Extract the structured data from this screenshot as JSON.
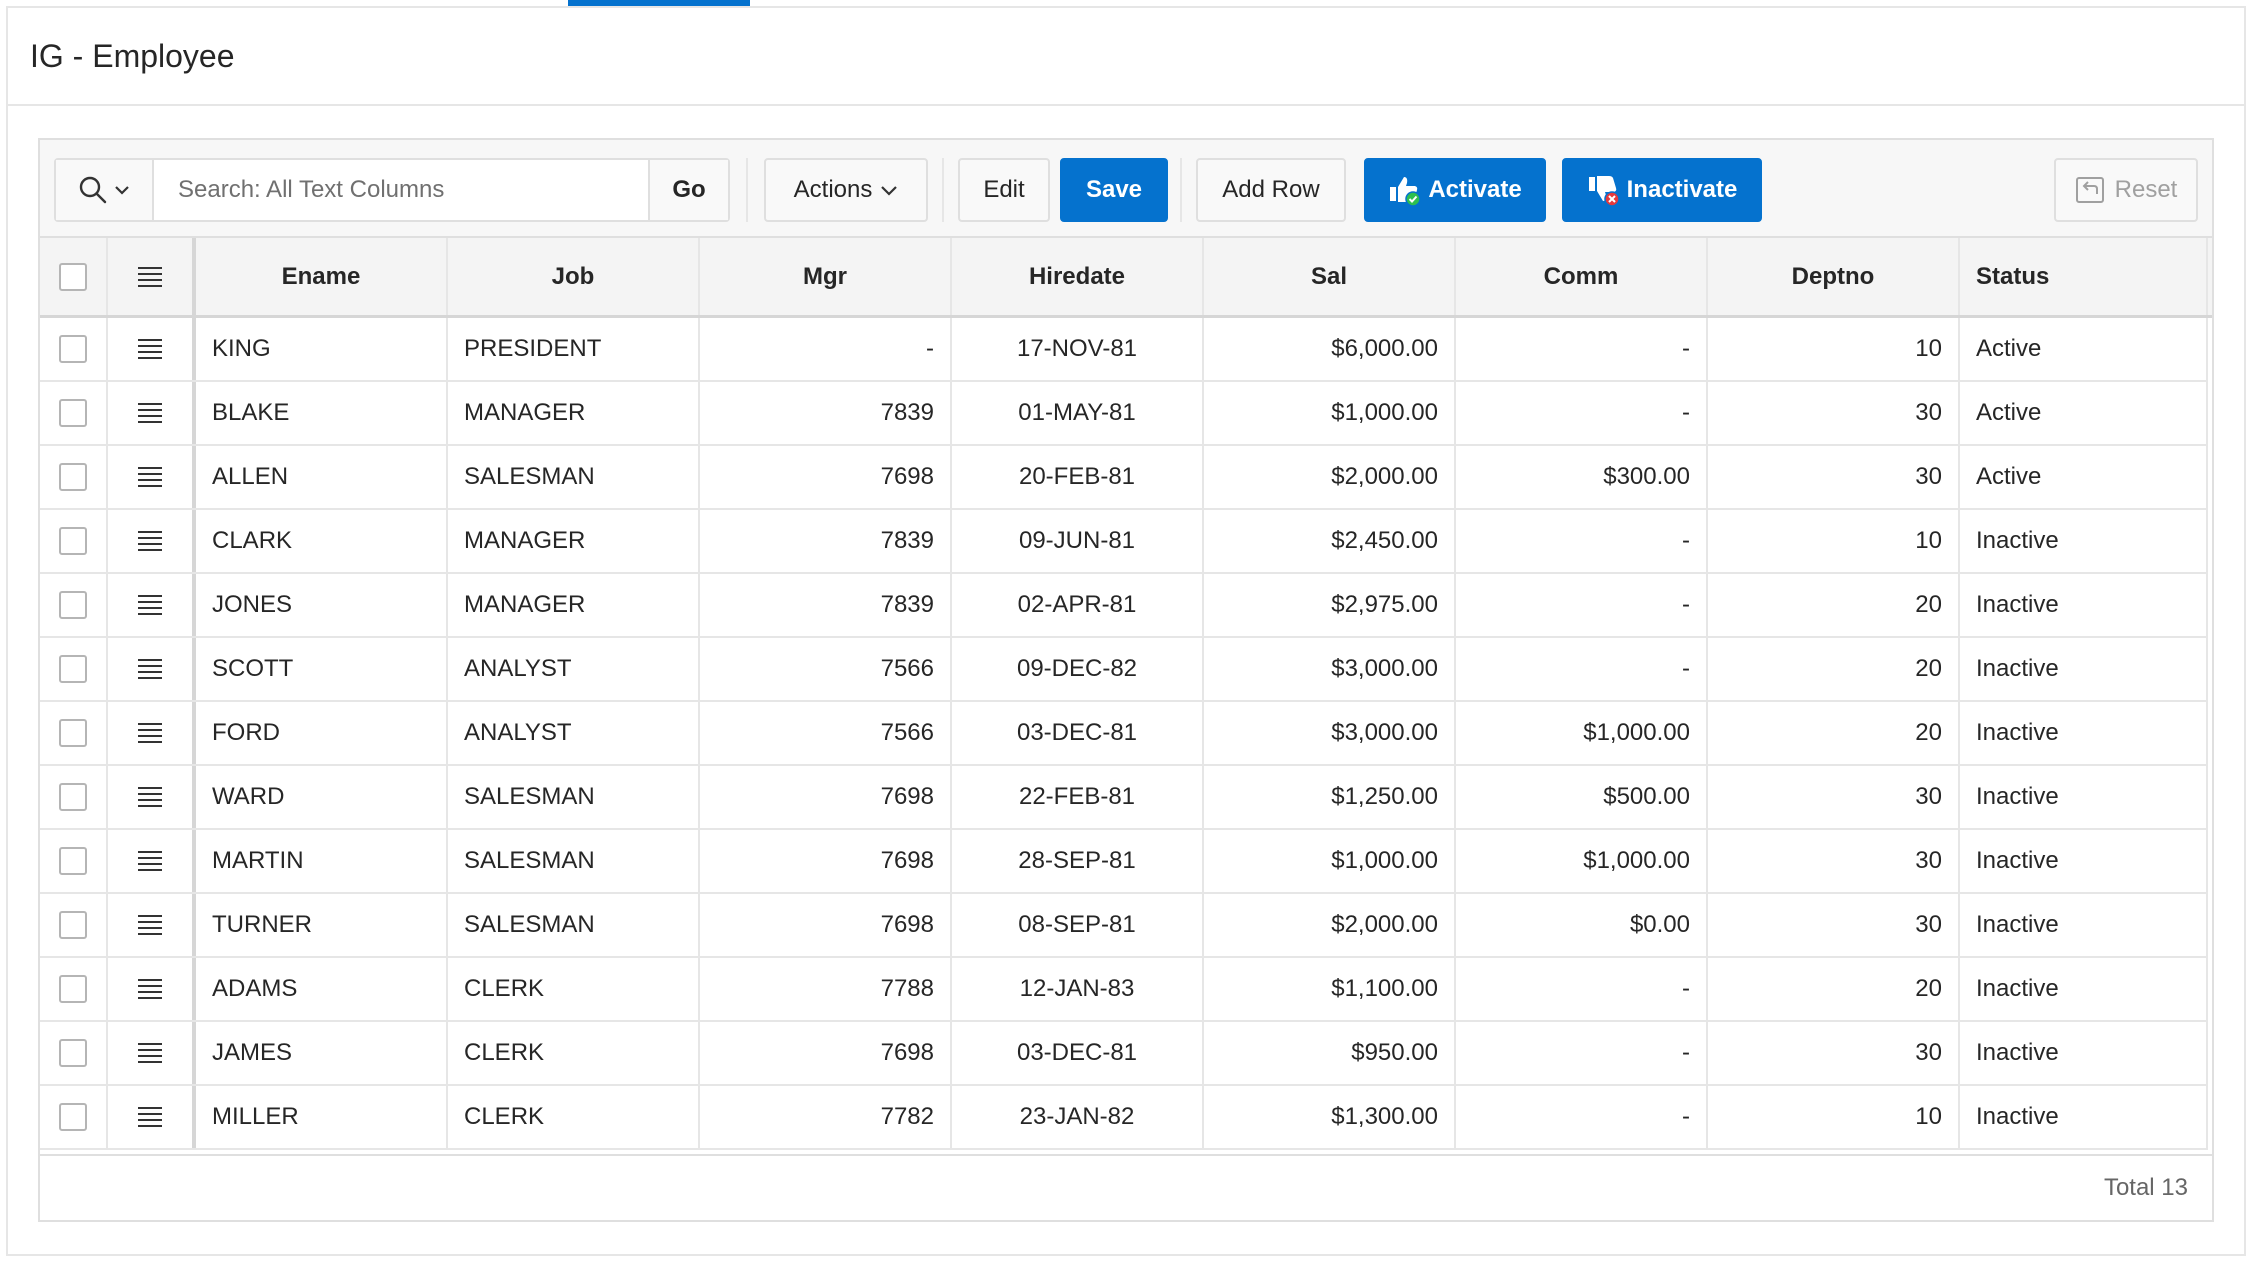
{
  "region": {
    "title": "IG - Employee"
  },
  "toolbar": {
    "search_placeholder": "Search: All Text Columns",
    "go_label": "Go",
    "actions_label": "Actions",
    "edit_label": "Edit",
    "save_label": "Save",
    "add_row_label": "Add Row",
    "activate_label": "Activate",
    "inactivate_label": "Inactivate",
    "reset_label": "Reset"
  },
  "columns": [
    "Ename",
    "Job",
    "Mgr",
    "Hiredate",
    "Sal",
    "Comm",
    "Deptno",
    "Status"
  ],
  "rows": [
    [
      "KING",
      "PRESIDENT",
      "-",
      "17-NOV-81",
      "$6,000.00",
      "-",
      "10",
      "Active"
    ],
    [
      "BLAKE",
      "MANAGER",
      "7839",
      "01-MAY-81",
      "$1,000.00",
      "-",
      "30",
      "Active"
    ],
    [
      "ALLEN",
      "SALESMAN",
      "7698",
      "20-FEB-81",
      "$2,000.00",
      "$300.00",
      "30",
      "Active"
    ],
    [
      "CLARK",
      "MANAGER",
      "7839",
      "09-JUN-81",
      "$2,450.00",
      "-",
      "10",
      "Inactive"
    ],
    [
      "JONES",
      "MANAGER",
      "7839",
      "02-APR-81",
      "$2,975.00",
      "-",
      "20",
      "Inactive"
    ],
    [
      "SCOTT",
      "ANALYST",
      "7566",
      "09-DEC-82",
      "$3,000.00",
      "-",
      "20",
      "Inactive"
    ],
    [
      "FORD",
      "ANALYST",
      "7566",
      "03-DEC-81",
      "$3,000.00",
      "$1,000.00",
      "20",
      "Inactive"
    ],
    [
      "WARD",
      "SALESMAN",
      "7698",
      "22-FEB-81",
      "$1,250.00",
      "$500.00",
      "30",
      "Inactive"
    ],
    [
      "MARTIN",
      "SALESMAN",
      "7698",
      "28-SEP-81",
      "$1,000.00",
      "$1,000.00",
      "30",
      "Inactive"
    ],
    [
      "TURNER",
      "SALESMAN",
      "7698",
      "08-SEP-81",
      "$2,000.00",
      "$0.00",
      "30",
      "Inactive"
    ],
    [
      "ADAMS",
      "CLERK",
      "7788",
      "12-JAN-83",
      "$1,100.00",
      "-",
      "20",
      "Inactive"
    ],
    [
      "JAMES",
      "CLERK",
      "7698",
      "03-DEC-81",
      "$950.00",
      "-",
      "30",
      "Inactive"
    ],
    [
      "MILLER",
      "CLERK",
      "7782",
      "23-JAN-82",
      "$1,300.00",
      "-",
      "10",
      "Inactive"
    ]
  ],
  "footer": {
    "total": "Total 13"
  },
  "colors": {
    "primary": "#0572ce",
    "active_check": "#2ebf4f",
    "inactive_x": "#e5383b"
  }
}
